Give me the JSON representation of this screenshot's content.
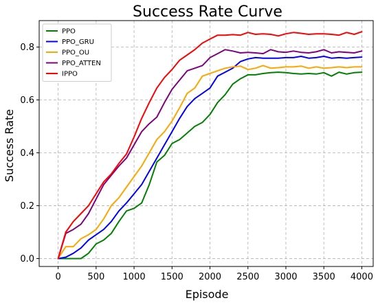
{
  "chart_data": {
    "type": "line",
    "title": "Success Rate Curve",
    "xlabel": "Episode",
    "ylabel": "Success Rate",
    "xlim": [
      -250,
      4150
    ],
    "ylim": [
      -0.03,
      0.9
    ],
    "xticks": [
      0,
      500,
      1000,
      1500,
      2000,
      2500,
      3000,
      3500,
      4000
    ],
    "yticks": [
      0.0,
      0.2,
      0.4,
      0.6,
      0.8
    ],
    "xtick_labels": [
      "0",
      "500",
      "1000",
      "1500",
      "2000",
      "2500",
      "3000",
      "3500",
      "4000"
    ],
    "ytick_labels": [
      "0.0",
      "0.2",
      "0.4",
      "0.6",
      "0.8"
    ],
    "grid": true,
    "legend_position": "top-left",
    "x": [
      0,
      100,
      200,
      300,
      400,
      500,
      600,
      700,
      800,
      900,
      1000,
      1100,
      1200,
      1300,
      1400,
      1500,
      1600,
      1700,
      1800,
      1900,
      2000,
      2100,
      2200,
      2300,
      2400,
      2500,
      2600,
      2700,
      2800,
      2900,
      3000,
      3100,
      3200,
      3300,
      3400,
      3500,
      3600,
      3700,
      3800,
      3900,
      4000
    ],
    "series": [
      {
        "name": "PPO",
        "color": "#008000",
        "values": [
          0.0,
          0.0,
          0.0,
          0.0,
          0.02,
          0.055,
          0.07,
          0.095,
          0.14,
          0.18,
          0.19,
          0.21,
          0.28,
          0.365,
          0.39,
          0.435,
          0.45,
          0.475,
          0.5,
          0.515,
          0.545,
          0.59,
          0.62,
          0.66,
          0.68,
          0.695,
          0.695,
          0.7,
          0.703,
          0.705,
          0.703,
          0.7,
          0.698,
          0.7,
          0.698,
          0.703,
          0.69,
          0.705,
          0.698,
          0.703,
          0.705
        ]
      },
      {
        "name": "PPO_GRU",
        "color": "#0000ff",
        "values": [
          0.0,
          0.005,
          0.02,
          0.04,
          0.07,
          0.09,
          0.11,
          0.14,
          0.18,
          0.21,
          0.245,
          0.28,
          0.33,
          0.38,
          0.43,
          0.48,
          0.53,
          0.575,
          0.605,
          0.625,
          0.645,
          0.69,
          0.705,
          0.72,
          0.745,
          0.755,
          0.76,
          0.758,
          0.758,
          0.758,
          0.76,
          0.76,
          0.765,
          0.758,
          0.76,
          0.765,
          0.758,
          0.76,
          0.758,
          0.76,
          0.762
        ]
      },
      {
        "name": "PPO_OU",
        "color": "#ffa500",
        "values": [
          0.0,
          0.045,
          0.045,
          0.075,
          0.09,
          0.11,
          0.15,
          0.2,
          0.23,
          0.27,
          0.31,
          0.35,
          0.4,
          0.45,
          0.48,
          0.52,
          0.57,
          0.625,
          0.645,
          0.69,
          0.7,
          0.71,
          0.72,
          0.725,
          0.728,
          0.715,
          0.72,
          0.73,
          0.72,
          0.722,
          0.725,
          0.725,
          0.728,
          0.72,
          0.725,
          0.72,
          0.722,
          0.725,
          0.722,
          0.725,
          0.725
        ]
      },
      {
        "name": "PPO_ATTEN",
        "color": "#800080",
        "values": [
          0.0,
          0.095,
          0.11,
          0.13,
          0.17,
          0.225,
          0.28,
          0.315,
          0.35,
          0.38,
          0.43,
          0.48,
          0.51,
          0.535,
          0.59,
          0.64,
          0.675,
          0.71,
          0.72,
          0.73,
          0.76,
          0.775,
          0.79,
          0.785,
          0.778,
          0.78,
          0.778,
          0.775,
          0.79,
          0.782,
          0.78,
          0.785,
          0.78,
          0.778,
          0.782,
          0.79,
          0.778,
          0.782,
          0.78,
          0.778,
          0.785
        ]
      },
      {
        "name": "IPPO",
        "color": "#ff0000",
        "values": [
          0.0,
          0.1,
          0.14,
          0.17,
          0.2,
          0.245,
          0.29,
          0.32,
          0.36,
          0.395,
          0.46,
          0.53,
          0.59,
          0.645,
          0.685,
          0.715,
          0.75,
          0.77,
          0.79,
          0.815,
          0.83,
          0.845,
          0.845,
          0.847,
          0.845,
          0.855,
          0.848,
          0.85,
          0.848,
          0.842,
          0.85,
          0.855,
          0.852,
          0.848,
          0.85,
          0.85,
          0.848,
          0.845,
          0.855,
          0.848,
          0.858
        ]
      }
    ]
  }
}
